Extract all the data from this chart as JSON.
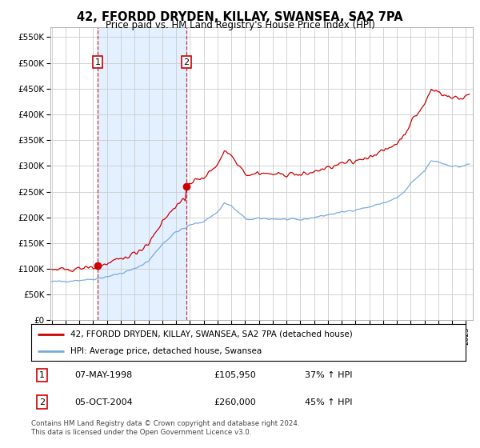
{
  "title": "42, FFORDD DRYDEN, KILLAY, SWANSEA, SA2 7PA",
  "subtitle": "Price paid vs. HM Land Registry's House Price Index (HPI)",
  "legend_line1": "42, FFORDD DRYDEN, KILLAY, SWANSEA, SA2 7PA (detached house)",
  "legend_line2": "HPI: Average price, detached house, Swansea",
  "transaction1_date": "07-MAY-1998",
  "transaction1_price": "£105,950",
  "transaction1_hpi": "37% ↑ HPI",
  "transaction1_year": 1998.33,
  "transaction1_value": 105950,
  "transaction2_date": "05-OCT-2004",
  "transaction2_price": "£260,000",
  "transaction2_hpi": "45% ↑ HPI",
  "transaction2_year": 2004.75,
  "transaction2_value": 260000,
  "footer": "Contains HM Land Registry data © Crown copyright and database right 2024.\nThis data is licensed under the Open Government Licence v3.0.",
  "hpi_color": "#7aaadd",
  "price_color": "#cc0000",
  "background_color": "#ffffff",
  "plot_bg_color": "#ffffff",
  "grid_color": "#cccccc",
  "shade_color": "#ddeeff",
  "ylim_min": 0,
  "ylim_max": 570000,
  "xmin": 1994.9,
  "xmax": 2025.5
}
